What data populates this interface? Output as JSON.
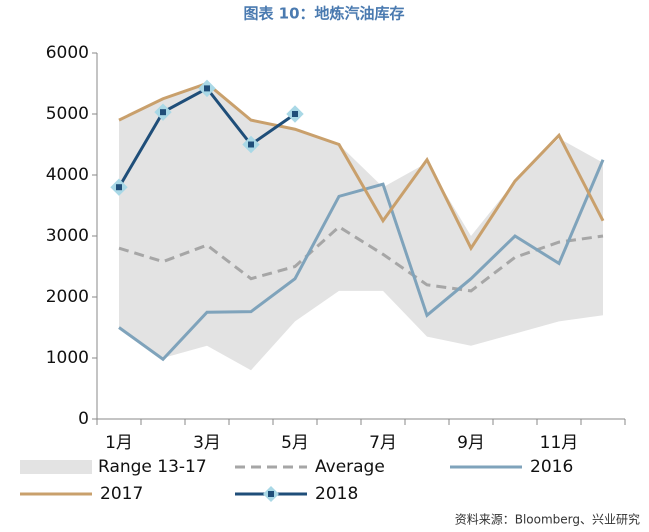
{
  "chart_data": {
    "type": "line",
    "title": "图表 10：地炼汽油库存",
    "source": "资料来源：Bloomberg、兴业研究",
    "categories": [
      "1月",
      null,
      "3月",
      null,
      "5月",
      null,
      "7月",
      null,
      "9月",
      null,
      "11月",
      null
    ],
    "range": {
      "name": "Range 13-17",
      "color": "#e3e3e3",
      "high": [
        4900,
        5250,
        5500,
        4900,
        4750,
        4500,
        3800,
        4200,
        3000,
        3900,
        4600,
        4200
      ],
      "low": [
        1500,
        1000,
        1200,
        800,
        1600,
        2100,
        2100,
        1350,
        1200,
        1400,
        1600,
        1700
      ]
    },
    "series": [
      {
        "name": "Average",
        "color": "#a6a6a6",
        "dashed": true,
        "values": [
          2800,
          2580,
          2850,
          2300,
          2500,
          3150,
          2700,
          2200,
          2100,
          2650,
          2900,
          3000
        ]
      },
      {
        "name": "2016",
        "color": "#7fa3bb",
        "values": [
          1500,
          980,
          1750,
          1760,
          2300,
          3650,
          3850,
          1700,
          2300,
          3000,
          2550,
          4250
        ]
      },
      {
        "name": "2017",
        "color": "#c9a06c",
        "values": [
          4900,
          5250,
          5500,
          4900,
          4750,
          4500,
          3250,
          4250,
          2800,
          3900,
          4650,
          3250
        ]
      },
      {
        "name": "2018",
        "color": "#1f4e79",
        "marker": "#a9d8e6",
        "values": [
          3800,
          5030,
          5420,
          4500,
          5000,
          null,
          null,
          null,
          null,
          null,
          null,
          null
        ]
      }
    ],
    "ylim": [
      0,
      6000
    ],
    "yticks": [
      0,
      1000,
      2000,
      3000,
      4000,
      5000,
      6000
    ]
  }
}
